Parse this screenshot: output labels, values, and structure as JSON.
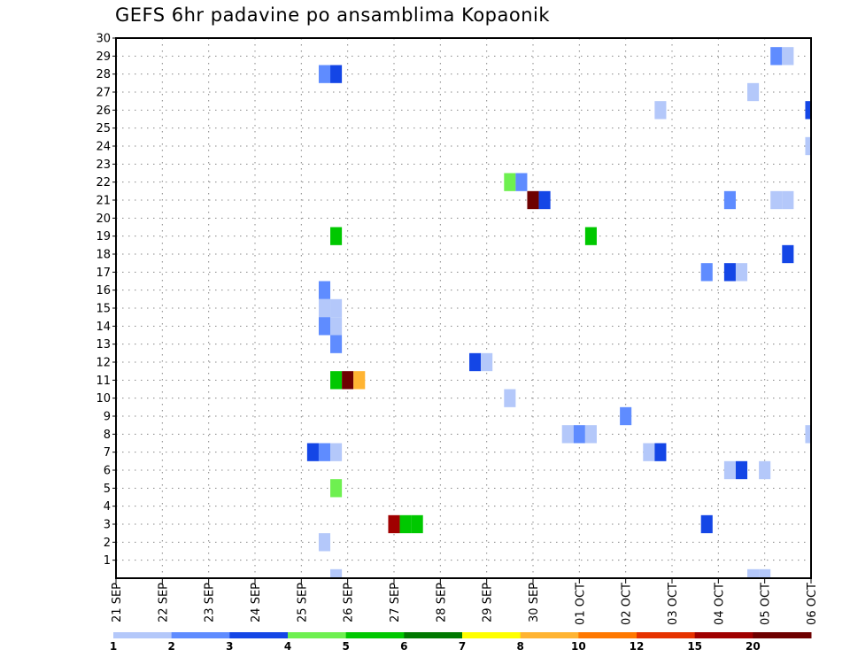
{
  "chart_data": {
    "type": "heatmap",
    "title": "GEFS 6hr padavine po ansamblima Kopaonik",
    "xlabel": "",
    "ylabel": "",
    "x_unit": "6-hour step from 21 SEP 00Z",
    "x_tick_labels": [
      "21 SEP",
      "22 SEP",
      "23 SEP",
      "24 SEP",
      "25 SEP",
      "26 SEP",
      "27 SEP",
      "28 SEP",
      "29 SEP",
      "30 SEP",
      "01 OCT",
      "02 OCT",
      "03 OCT",
      "04 OCT",
      "05 OCT",
      "06 OCT"
    ],
    "xlim": [
      0,
      60
    ],
    "y_tick_labels": [
      "1",
      "2",
      "3",
      "4",
      "5",
      "6",
      "7",
      "8",
      "9",
      "10",
      "11",
      "12",
      "13",
      "14",
      "15",
      "16",
      "17",
      "18",
      "19",
      "20",
      "21",
      "22",
      "23",
      "24",
      "25",
      "26",
      "27",
      "28",
      "29",
      "30"
    ],
    "ylim": [
      0,
      30
    ],
    "grid": true,
    "colorbar": {
      "placement": "bottom",
      "labels": [
        "1",
        "2",
        "3",
        "4",
        "5",
        "6",
        "7",
        "8",
        "10",
        "12",
        "15",
        "20"
      ],
      "bins": [
        {
          "min": 1,
          "max": 2,
          "color": "#b4c8fa"
        },
        {
          "min": 2,
          "max": 3,
          "color": "#5f8cff"
        },
        {
          "min": 3,
          "max": 4,
          "color": "#1446e6"
        },
        {
          "min": 4,
          "max": 5,
          "color": "#6ef050"
        },
        {
          "min": 5,
          "max": 6,
          "color": "#00c800"
        },
        {
          "min": 6,
          "max": 7,
          "color": "#007800"
        },
        {
          "min": 7,
          "max": 8,
          "color": "#ffff00"
        },
        {
          "min": 8,
          "max": 10,
          "color": "#ffb432"
        },
        {
          "min": 10,
          "max": 12,
          "color": "#ff7800"
        },
        {
          "min": 12,
          "max": 15,
          "color": "#e63200"
        },
        {
          "min": 15,
          "max": 20,
          "color": "#a00000"
        },
        {
          "min": 20,
          "max": null,
          "color": "#6e0000"
        }
      ]
    },
    "cells_format": [
      "x_step",
      "member",
      "value_mm"
    ],
    "cells": [
      [
        57,
        29,
        2.5
      ],
      [
        58,
        29,
        1.5
      ],
      [
        18,
        28,
        2.5
      ],
      [
        19,
        28,
        3.5
      ],
      [
        55,
        27,
        1.5
      ],
      [
        47,
        26,
        1.5
      ],
      [
        60,
        26,
        3.5
      ],
      [
        60,
        24,
        1.5
      ],
      [
        34,
        22,
        4.5
      ],
      [
        35,
        22,
        2.5
      ],
      [
        36,
        21,
        25
      ],
      [
        37,
        21,
        3.5
      ],
      [
        53,
        21,
        2.5
      ],
      [
        57,
        21,
        1.5
      ],
      [
        58,
        21,
        1.5
      ],
      [
        19,
        19,
        5.5
      ],
      [
        41,
        19,
        5.5
      ],
      [
        58,
        18,
        3.5
      ],
      [
        51,
        17,
        2.5
      ],
      [
        53,
        17,
        3.5
      ],
      [
        54,
        17,
        1.5
      ],
      [
        18,
        16,
        2.5
      ],
      [
        18,
        15,
        1.5
      ],
      [
        19,
        15,
        1.5
      ],
      [
        18,
        14,
        2.5
      ],
      [
        19,
        14,
        1.5
      ],
      [
        19,
        13,
        2.5
      ],
      [
        31,
        12,
        3.5
      ],
      [
        32,
        12,
        1.5
      ],
      [
        19,
        11,
        5.5
      ],
      [
        20,
        11,
        25
      ],
      [
        21,
        11,
        9
      ],
      [
        34,
        10,
        1.5
      ],
      [
        44,
        9,
        2.5
      ],
      [
        39,
        8,
        1.5
      ],
      [
        40,
        8,
        2.5
      ],
      [
        41,
        8,
        1.5
      ],
      [
        60,
        8,
        1.5
      ],
      [
        17,
        7,
        3.5
      ],
      [
        18,
        7,
        2.5
      ],
      [
        19,
        7,
        1.5
      ],
      [
        46,
        7,
        1.5
      ],
      [
        47,
        7,
        3.5
      ],
      [
        53,
        6,
        1.5
      ],
      [
        54,
        6,
        3.5
      ],
      [
        56,
        6,
        1.5
      ],
      [
        19,
        5,
        4.5
      ],
      [
        24,
        3,
        17
      ],
      [
        25,
        3,
        5.5
      ],
      [
        26,
        3,
        5.5
      ],
      [
        51,
        3,
        3.5
      ],
      [
        18,
        2,
        1.5
      ],
      [
        19,
        0,
        1.5
      ],
      [
        55,
        0,
        1.5
      ],
      [
        56,
        0,
        1.5
      ]
    ]
  }
}
